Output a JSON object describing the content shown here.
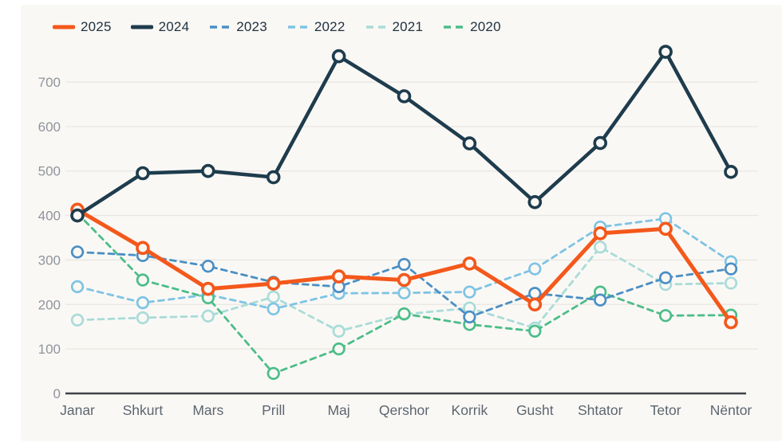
{
  "page": {
    "background_color": "#ffffff",
    "panel_color": "#faf8f5"
  },
  "chart_data": {
    "type": "line",
    "title": "",
    "xlabel": "",
    "ylabel": "",
    "categories": [
      "Janar",
      "Shkurt",
      "Mars",
      "Prill",
      "Maj",
      "Qershor",
      "Korrik",
      "Gusht",
      "Shtator",
      "Tetor",
      "Nëntor"
    ],
    "series": [
      {
        "name": "2025",
        "style": "solid",
        "color": "#f4581b",
        "line_width": 5,
        "values": [
          413,
          327,
          235,
          247,
          263,
          255,
          292,
          200,
          360,
          370,
          160
        ]
      },
      {
        "name": "2024",
        "style": "solid",
        "color": "#1e3c4d",
        "line_width": 4.5,
        "values": [
          400,
          495,
          500,
          486,
          758,
          668,
          562,
          430,
          563,
          768,
          498
        ]
      },
      {
        "name": "2023",
        "style": "dashed",
        "color": "#4a8fc4",
        "line_width": 2.8,
        "values": [
          318,
          310,
          286,
          250,
          240,
          290,
          172,
          225,
          210,
          260,
          280
        ]
      },
      {
        "name": "2022",
        "style": "dashed",
        "color": "#7ec4e4",
        "line_width": 2.8,
        "values": [
          240,
          204,
          222,
          190,
          225,
          226,
          228,
          280,
          374,
          393,
          296
        ]
      },
      {
        "name": "2021",
        "style": "dashed",
        "color": "#a9dcd8",
        "line_width": 2.8,
        "values": [
          165,
          170,
          174,
          217,
          140,
          178,
          192,
          147,
          329,
          245,
          248
        ]
      },
      {
        "name": "2020",
        "style": "dashed",
        "color": "#4cbd88",
        "line_width": 2.8,
        "values": [
          405,
          255,
          215,
          45,
          100,
          179,
          155,
          140,
          228,
          175,
          176
        ]
      }
    ],
    "ylim": [
      0,
      780
    ],
    "yticks": [
      0,
      100,
      200,
      300,
      400,
      500,
      600,
      700
    ],
    "grid": true,
    "legend_position": "top-left",
    "draw_order": [
      "2021",
      "2022",
      "2020",
      "2023",
      "2025",
      "2024"
    ],
    "style_hints": {
      "grid_color": "#e9e6e1",
      "axis_color": "#3c4146",
      "tick_label_color": "#8f949b",
      "month_label_color": "#5c6670",
      "legend_text_color": "#20323f",
      "marker_fill": "#faf8f5",
      "dash_pattern": "7 6"
    }
  }
}
